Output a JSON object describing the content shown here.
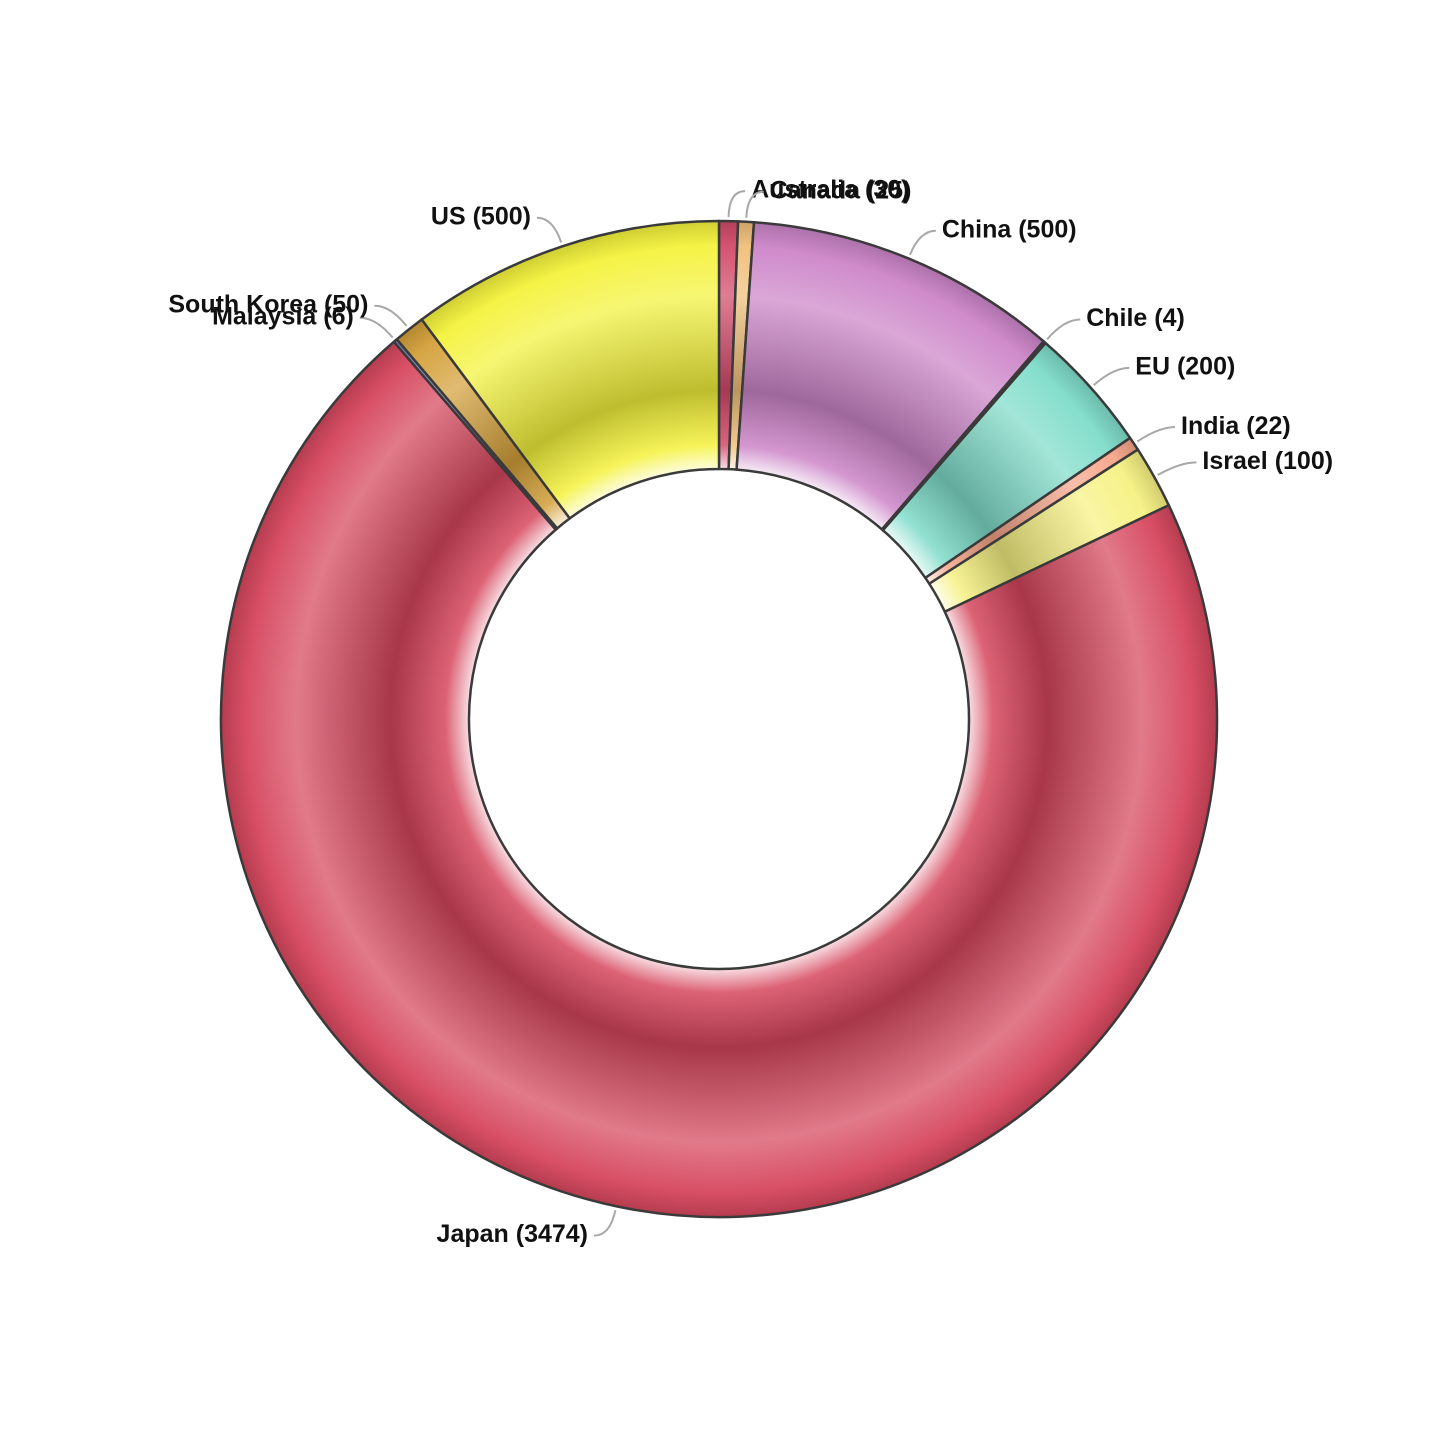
{
  "chart_data": {
    "type": "pie",
    "variant": "donut",
    "title": "",
    "start_angle_deg": 0,
    "direction": "clockwise",
    "legend": "none",
    "slices": [
      {
        "label": "Australia",
        "value": 30,
        "text": "Australia (30)",
        "color": "#d24a6a"
      },
      {
        "label": "Canada",
        "value": 25,
        "text": "Canada (25)",
        "color": "#f0bf7a"
      },
      {
        "label": "China",
        "value": 500,
        "text": "China (500)",
        "color": "#cc85c8"
      },
      {
        "label": "Chile",
        "value": 4,
        "text": "Chile (4)",
        "color": "#6a9ed8"
      },
      {
        "label": "EU",
        "value": 200,
        "text": "EU (200)",
        "color": "#7fdcc9"
      },
      {
        "label": "India",
        "value": 22,
        "text": "India (22)",
        "color": "#f7a589"
      },
      {
        "label": "Israel",
        "value": 100,
        "text": "Israel (100)",
        "color": "#f6f182"
      },
      {
        "label": "Japan",
        "value": 3474,
        "text": "Japan (3474)",
        "color": "#d6465d"
      },
      {
        "label": "Malaysia",
        "value": 6,
        "text": "Malaysia (6)",
        "color": "#7f86bf"
      },
      {
        "label": "South Korea",
        "value": 50,
        "text": "South Korea (50)",
        "color": "#d4a03a"
      },
      {
        "label": "US",
        "value": 500,
        "text": "US (500)",
        "color": "#f4f23c"
      }
    ]
  }
}
